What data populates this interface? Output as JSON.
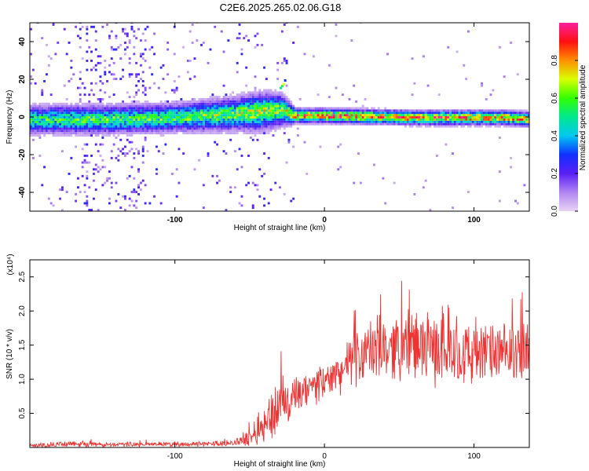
{
  "title": "C2E6.2025.265.02.06.G18",
  "chart_data": [
    {
      "type": "heatmap",
      "name": "spectrogram",
      "xlabel": "Height of straight line (km)",
      "ylabel": "Frequency (Hz)",
      "xlim": [
        -197,
        137
      ],
      "ylim": [
        -50,
        50
      ],
      "xticks": [
        -100,
        0,
        100
      ],
      "xtick_labels": [
        "-100",
        "0",
        "100"
      ],
      "yticks": [
        -40,
        -20,
        0,
        20,
        40
      ],
      "ytick_labels": [
        "-40",
        "-20",
        "0",
        "20",
        "40"
      ],
      "colorbar": {
        "label": "Normalized spectral amplitude",
        "range": [
          0,
          1
        ],
        "ticks": [
          0.0,
          0.2,
          0.4,
          0.6,
          0.8
        ],
        "tick_labels": [
          "0.0",
          "0.2",
          "0.4",
          "0.6",
          "0.8"
        ],
        "colors": [
          "#e8d4f5",
          "#b085f0",
          "#5a1ff5",
          "#1030ff",
          "#00c8f0",
          "#00e890",
          "#30ff00",
          "#d8ff00",
          "#ff9000",
          "#ff1010",
          "#ff20a0"
        ]
      },
      "band": {
        "description_points_x": [
          -197,
          -150,
          -100,
          -60,
          -45,
          -30,
          -20,
          0,
          60,
          100,
          120,
          137
        ],
        "center_freq_hz": [
          -2,
          -2,
          -1,
          1,
          2,
          3,
          0,
          0,
          -1,
          -1,
          -1,
          -2
        ],
        "half_width_hz": [
          6,
          6,
          6,
          7,
          8,
          7,
          3,
          3,
          3,
          3,
          3,
          3
        ],
        "peak_amplitude": [
          0.55,
          0.6,
          0.6,
          0.65,
          0.7,
          0.65,
          0.9,
          0.9,
          0.85,
          0.85,
          0.85,
          0.8
        ]
      }
    },
    {
      "type": "line",
      "name": "snr",
      "xlabel": "Height of straight line (km)",
      "ylabel": "SNR (10 * v/v)",
      "y_multiplier": "(x10⁴)",
      "xlim": [
        -197,
        137
      ],
      "ylim": [
        0,
        2.75
      ],
      "xticks": [
        -100,
        0,
        100
      ],
      "xtick_labels": [
        "-100",
        "0",
        "100"
      ],
      "yticks": [
        0.5,
        1.0,
        1.5,
        2.0,
        2.5
      ],
      "ytick_labels": [
        "0.5",
        "1.0",
        "1.5",
        "2.0",
        "2.5"
      ],
      "color": "#ee3333",
      "envelope_x": [
        -197,
        -170,
        -140,
        -110,
        -80,
        -60,
        -50,
        -40,
        -35,
        -30,
        -25,
        -20,
        -10,
        0,
        10,
        20,
        30,
        40,
        50,
        60,
        70,
        80,
        90,
        100,
        110,
        120,
        130,
        137
      ],
      "envelope_mean": [
        0.03,
        0.05,
        0.04,
        0.05,
        0.05,
        0.07,
        0.15,
        0.35,
        0.5,
        0.6,
        0.65,
        0.7,
        0.85,
        0.95,
        1.1,
        1.3,
        1.4,
        1.45,
        1.5,
        1.5,
        1.45,
        1.45,
        1.4,
        1.35,
        1.4,
        1.35,
        1.4,
        1.4
      ],
      "envelope_spread": [
        0.03,
        0.06,
        0.04,
        0.04,
        0.04,
        0.06,
        0.15,
        0.35,
        0.45,
        0.5,
        0.45,
        0.4,
        0.3,
        0.3,
        0.35,
        0.45,
        0.55,
        0.55,
        0.55,
        0.6,
        0.6,
        0.6,
        0.55,
        0.55,
        0.5,
        0.5,
        0.55,
        0.5
      ]
    }
  ]
}
